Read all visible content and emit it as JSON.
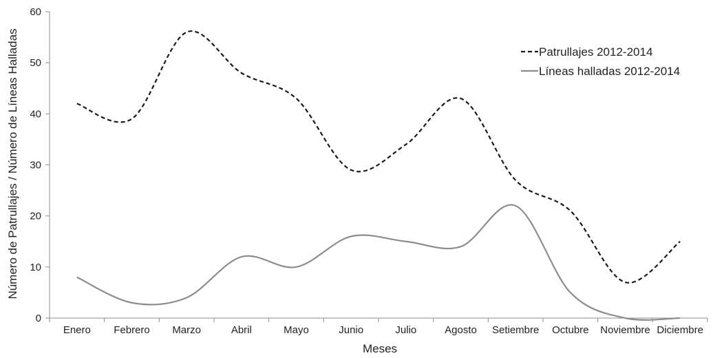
{
  "chart_data": {
    "type": "line",
    "title": "",
    "xlabel": "Meses",
    "ylabel": "Número de Patrullajes / Número de Líneas Halladas",
    "categories": [
      "Enero",
      "Febrero",
      "Marzo",
      "Abril",
      "Mayo",
      "Junio",
      "Julio",
      "Agosto",
      "Setiembre",
      "Octubre",
      "Noviembre",
      "Diciembre"
    ],
    "ylim": [
      0,
      60
    ],
    "yticks": [
      "0",
      "10",
      "20",
      "30",
      "40",
      "50",
      "60"
    ],
    "grid": false,
    "legend_position": "top-right",
    "series": [
      {
        "name": "Patrullajes 2012-2014",
        "values": [
          42,
          39,
          56,
          48,
          43,
          29,
          34,
          43,
          27,
          21,
          7,
          15
        ],
        "color": "#1a1a1a",
        "style": "dashed"
      },
      {
        "name": "Líneas halladas 2012-2014",
        "values": [
          8,
          3,
          4,
          12,
          10,
          16,
          15,
          14,
          22,
          5,
          0,
          0
        ],
        "color": "#8c8c8c",
        "style": "solid"
      }
    ]
  }
}
